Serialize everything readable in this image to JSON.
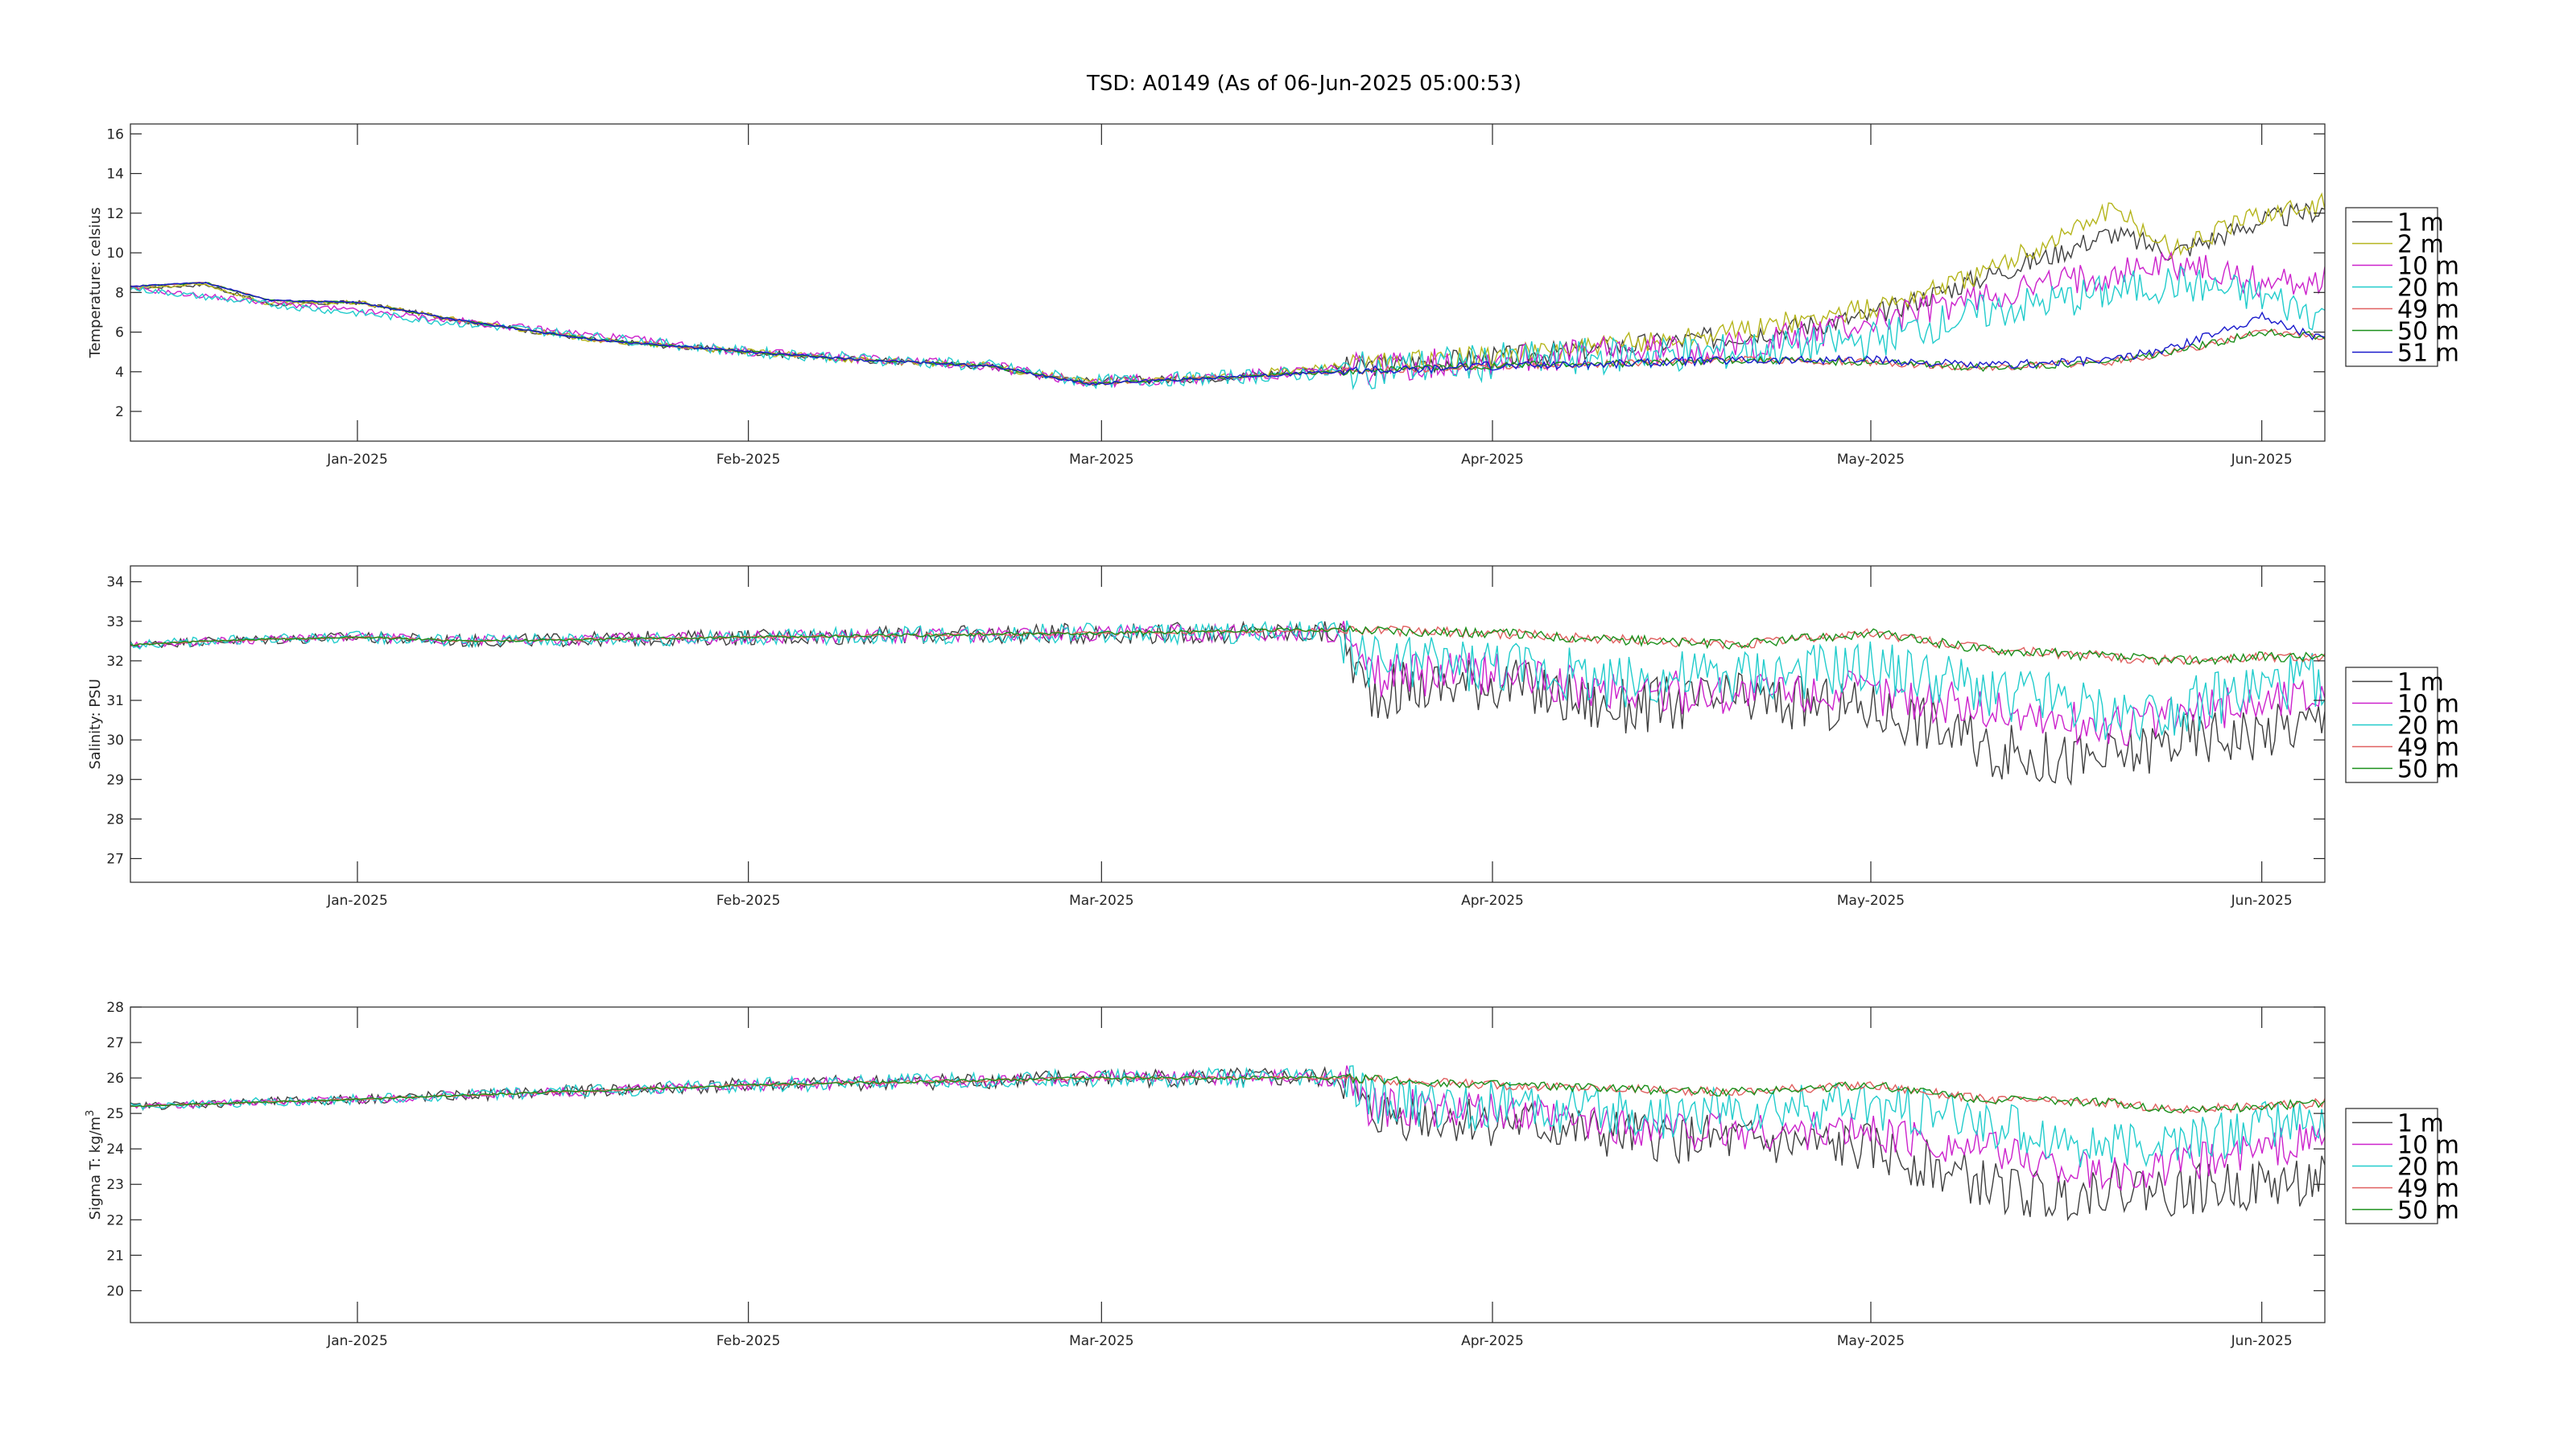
{
  "figure": {
    "title": "TSD: A0149 (As of 06-Jun-2025 05:00:53)",
    "background": "#ffffff"
  },
  "chart_data": [
    {
      "type": "line",
      "ylabel": "Temperature:  celsius",
      "xlabel": "",
      "x_range": [
        "2024-12-14",
        "2025-06-06"
      ],
      "ylim": [
        0.5,
        16.5
      ],
      "y_ticks": [
        2,
        4,
        6,
        8,
        10,
        12,
        14,
        16
      ],
      "x_ticks": [
        {
          "date": "2025-01-01",
          "label": "Jan-2025"
        },
        {
          "date": "2025-02-01",
          "label": "Feb-2025"
        },
        {
          "date": "2025-03-01",
          "label": "Mar-2025"
        },
        {
          "date": "2025-04-01",
          "label": "Apr-2025"
        },
        {
          "date": "2025-05-01",
          "label": "May-2025"
        },
        {
          "date": "2025-06-01",
          "label": "Jun-2025"
        }
      ],
      "grid": false,
      "legend_position": "outside-right",
      "series": [
        {
          "name": "1 m",
          "color": "#404040",
          "noise": 0.35,
          "dates": [
            "2024-12-14",
            "2024-12-20",
            "2024-12-25",
            "2025-01-01",
            "2025-01-10",
            "2025-01-20",
            "2025-02-01",
            "2025-02-10",
            "2025-02-20",
            "2025-02-28",
            "2025-03-10",
            "2025-03-20",
            "2025-04-01",
            "2025-04-10",
            "2025-04-20",
            "2025-05-01",
            "2025-05-10",
            "2025-05-15",
            "2025-05-20",
            "2025-05-25",
            "2025-06-01",
            "2025-06-06"
          ],
          "values": [
            8.2,
            8.4,
            7.4,
            7.5,
            6.5,
            5.6,
            5.0,
            4.6,
            4.3,
            3.5,
            3.7,
            4.2,
            4.7,
            5.2,
            5.8,
            6.8,
            8.8,
            9.8,
            11.0,
            10.0,
            11.6,
            12.2
          ]
        },
        {
          "name": "2 m",
          "color": "#b5b51c",
          "noise": 0.35,
          "dates": [
            "2024-12-14",
            "2024-12-20",
            "2024-12-25",
            "2025-01-01",
            "2025-01-10",
            "2025-01-20",
            "2025-02-01",
            "2025-02-10",
            "2025-02-20",
            "2025-02-28",
            "2025-03-10",
            "2025-03-20",
            "2025-04-01",
            "2025-04-10",
            "2025-04-20",
            "2025-05-01",
            "2025-05-10",
            "2025-05-15",
            "2025-05-20",
            "2025-05-25",
            "2025-06-01",
            "2025-06-06"
          ],
          "values": [
            8.2,
            8.4,
            7.4,
            7.5,
            6.5,
            5.6,
            5.0,
            4.6,
            4.3,
            3.5,
            3.7,
            4.3,
            4.8,
            5.3,
            6.0,
            7.2,
            9.0,
            10.5,
            12.2,
            10.2,
            12.0,
            12.5
          ]
        },
        {
          "name": "10 m",
          "color": "#cc22cc",
          "noise": 0.5,
          "dates": [
            "2024-12-14",
            "2024-12-25",
            "2025-01-10",
            "2025-02-01",
            "2025-02-20",
            "2025-02-28",
            "2025-03-10",
            "2025-03-20",
            "2025-04-01",
            "2025-04-10",
            "2025-04-20",
            "2025-05-01",
            "2025-05-10",
            "2025-05-20",
            "2025-05-25",
            "2025-06-01",
            "2025-06-06"
          ],
          "values": [
            8.2,
            7.5,
            6.5,
            5.0,
            4.3,
            3.5,
            3.7,
            4.1,
            4.6,
            5.0,
            5.2,
            6.5,
            7.8,
            9.0,
            9.5,
            8.5,
            8.6
          ]
        },
        {
          "name": "20 m",
          "color": "#22cccc",
          "noise": 0.6,
          "dates": [
            "2024-12-14",
            "2024-12-25",
            "2025-01-10",
            "2025-02-01",
            "2025-02-20",
            "2025-02-28",
            "2025-03-10",
            "2025-03-20",
            "2025-04-01",
            "2025-04-10",
            "2025-04-20",
            "2025-05-01",
            "2025-05-10",
            "2025-05-20",
            "2025-05-25",
            "2025-06-01",
            "2025-06-06"
          ],
          "values": [
            8.2,
            7.4,
            6.4,
            5.0,
            4.3,
            3.5,
            3.7,
            4.0,
            4.5,
            4.8,
            5.0,
            5.6,
            7.0,
            8.0,
            8.5,
            7.8,
            6.8
          ]
        },
        {
          "name": "49 m",
          "color": "#e06060",
          "noise": 0.12,
          "dates": [
            "2024-12-14",
            "2024-12-20",
            "2024-12-25",
            "2025-01-01",
            "2025-01-10",
            "2025-01-20",
            "2025-02-01",
            "2025-02-10",
            "2025-02-20",
            "2025-02-28",
            "2025-03-10",
            "2025-03-20",
            "2025-04-01",
            "2025-04-10",
            "2025-04-20",
            "2025-05-01",
            "2025-05-10",
            "2025-05-20",
            "2025-05-25",
            "2025-06-01",
            "2025-06-06"
          ],
          "values": [
            8.3,
            8.5,
            7.6,
            7.5,
            6.5,
            5.6,
            5.0,
            4.6,
            4.3,
            3.4,
            3.7,
            4.0,
            4.3,
            4.4,
            4.6,
            4.5,
            4.2,
            4.5,
            5.0,
            6.0,
            5.8
          ]
        },
        {
          "name": "50 m",
          "color": "#1a8f1a",
          "noise": 0.12,
          "dates": [
            "2024-12-14",
            "2024-12-20",
            "2024-12-25",
            "2025-01-01",
            "2025-01-10",
            "2025-01-20",
            "2025-02-01",
            "2025-02-10",
            "2025-02-20",
            "2025-02-28",
            "2025-03-10",
            "2025-03-20",
            "2025-04-01",
            "2025-04-10",
            "2025-04-20",
            "2025-05-01",
            "2025-05-10",
            "2025-05-20",
            "2025-05-25",
            "2025-06-01",
            "2025-06-06"
          ],
          "values": [
            8.3,
            8.5,
            7.6,
            7.5,
            6.5,
            5.6,
            5.0,
            4.6,
            4.3,
            3.4,
            3.7,
            4.0,
            4.3,
            4.4,
            4.6,
            4.5,
            4.2,
            4.5,
            5.0,
            6.0,
            5.8
          ]
        },
        {
          "name": "51 m",
          "color": "#1a1acc",
          "noise": 0.14,
          "dates": [
            "2024-12-14",
            "2024-12-20",
            "2024-12-25",
            "2025-01-01",
            "2025-01-10",
            "2025-01-20",
            "2025-02-01",
            "2025-02-10",
            "2025-02-20",
            "2025-02-28",
            "2025-03-10",
            "2025-03-20",
            "2025-04-01",
            "2025-04-10",
            "2025-04-20",
            "2025-05-01",
            "2025-05-10",
            "2025-05-20",
            "2025-05-25",
            "2025-06-01",
            "2025-06-06"
          ],
          "values": [
            8.3,
            8.5,
            7.6,
            7.5,
            6.5,
            5.6,
            5.0,
            4.6,
            4.3,
            3.4,
            3.7,
            4.0,
            4.3,
            4.4,
            4.6,
            4.6,
            4.3,
            4.6,
            5.2,
            6.8,
            5.6
          ]
        }
      ]
    },
    {
      "type": "line",
      "ylabel": "Salinity:  PSU",
      "xlabel": "",
      "x_range": [
        "2024-12-14",
        "2025-06-06"
      ],
      "ylim": [
        26.4,
        34.4
      ],
      "y_ticks": [
        27,
        28,
        29,
        30,
        31,
        32,
        33,
        34
      ],
      "x_ticks": [
        {
          "date": "2025-01-01",
          "label": "Jan-2025"
        },
        {
          "date": "2025-02-01",
          "label": "Feb-2025"
        },
        {
          "date": "2025-03-01",
          "label": "Mar-2025"
        },
        {
          "date": "2025-04-01",
          "label": "Apr-2025"
        },
        {
          "date": "2025-05-01",
          "label": "May-2025"
        },
        {
          "date": "2025-06-01",
          "label": "Jun-2025"
        }
      ],
      "grid": false,
      "legend_position": "outside-right",
      "series": [
        {
          "name": "1 m",
          "color": "#404040",
          "noise": 0.45,
          "dates": [
            "2024-12-14",
            "2024-12-20",
            "2025-01-01",
            "2025-01-10",
            "2025-02-01",
            "2025-03-01",
            "2025-03-20",
            "2025-03-22",
            "2025-04-01",
            "2025-04-10",
            "2025-04-20",
            "2025-05-01",
            "2025-05-05",
            "2025-05-10",
            "2025-05-15",
            "2025-05-20",
            "2025-05-25",
            "2025-06-01",
            "2025-06-06"
          ],
          "values": [
            32.4,
            32.5,
            32.6,
            32.5,
            32.6,
            32.7,
            32.7,
            31.2,
            31.5,
            30.8,
            31.0,
            30.8,
            30.5,
            29.8,
            29.5,
            29.5,
            30.0,
            30.2,
            30.5
          ]
        },
        {
          "name": "10 m",
          "color": "#cc22cc",
          "noise": 0.35,
          "dates": [
            "2024-12-14",
            "2024-12-20",
            "2025-01-01",
            "2025-01-10",
            "2025-02-01",
            "2025-03-01",
            "2025-03-20",
            "2025-03-22",
            "2025-04-01",
            "2025-04-10",
            "2025-04-20",
            "2025-05-01",
            "2025-05-10",
            "2025-05-15",
            "2025-05-20",
            "2025-05-25",
            "2025-06-01",
            "2025-06-06"
          ],
          "values": [
            32.4,
            32.5,
            32.6,
            32.5,
            32.6,
            32.7,
            32.7,
            31.6,
            31.7,
            31.2,
            31.2,
            31.2,
            30.8,
            30.5,
            30.3,
            30.6,
            31.0,
            31.2
          ]
        },
        {
          "name": "20 m",
          "color": "#22cccc",
          "noise": 0.45,
          "dates": [
            "2024-12-14",
            "2024-12-20",
            "2025-01-01",
            "2025-01-10",
            "2025-02-01",
            "2025-03-01",
            "2025-03-20",
            "2025-03-22",
            "2025-04-01",
            "2025-04-10",
            "2025-04-20",
            "2025-05-01",
            "2025-05-10",
            "2025-05-15",
            "2025-05-20",
            "2025-05-25",
            "2025-06-01",
            "2025-06-06"
          ],
          "values": [
            32.4,
            32.5,
            32.6,
            32.5,
            32.6,
            32.7,
            32.7,
            31.9,
            31.9,
            31.5,
            31.6,
            31.8,
            31.3,
            31.0,
            30.6,
            30.8,
            31.3,
            31.6
          ]
        },
        {
          "name": "49 m",
          "color": "#e06060",
          "noise": 0.08,
          "dates": [
            "2024-12-14",
            "2024-12-20",
            "2025-01-01",
            "2025-01-10",
            "2025-02-01",
            "2025-03-01",
            "2025-03-20",
            "2025-04-01",
            "2025-04-20",
            "2025-05-01",
            "2025-05-10",
            "2025-05-20",
            "2025-05-25",
            "2025-06-01",
            "2025-06-06"
          ],
          "values": [
            32.4,
            32.5,
            32.6,
            32.5,
            32.6,
            32.7,
            32.8,
            32.7,
            32.4,
            32.7,
            32.3,
            32.1,
            32.0,
            32.1,
            32.1
          ]
        },
        {
          "name": "50 m",
          "color": "#1a8f1a",
          "noise": 0.08,
          "dates": [
            "2024-12-14",
            "2024-12-20",
            "2025-01-01",
            "2025-01-10",
            "2025-02-01",
            "2025-03-01",
            "2025-03-20",
            "2025-04-01",
            "2025-04-20",
            "2025-05-01",
            "2025-05-10",
            "2025-05-20",
            "2025-05-25",
            "2025-06-01",
            "2025-06-06"
          ],
          "values": [
            32.4,
            32.5,
            32.6,
            32.5,
            32.6,
            32.7,
            32.8,
            32.7,
            32.4,
            32.7,
            32.3,
            32.1,
            32.0,
            32.1,
            32.1
          ]
        }
      ]
    },
    {
      "type": "line",
      "ylabel": "Sigma T:  kg/m",
      "ylabel_superscript": "3",
      "xlabel": "",
      "x_range": [
        "2024-12-14",
        "2025-06-06"
      ],
      "ylim": [
        19.1,
        28.0
      ],
      "y_ticks": [
        20,
        21,
        22,
        23,
        24,
        25,
        26,
        27,
        28
      ],
      "x_ticks": [
        {
          "date": "2025-01-01",
          "label": "Jan-2025"
        },
        {
          "date": "2025-02-01",
          "label": "Feb-2025"
        },
        {
          "date": "2025-03-01",
          "label": "Mar-2025"
        },
        {
          "date": "2025-04-01",
          "label": "Apr-2025"
        },
        {
          "date": "2025-05-01",
          "label": "May-2025"
        },
        {
          "date": "2025-06-01",
          "label": "Jun-2025"
        }
      ],
      "grid": false,
      "legend_position": "outside-right",
      "series": [
        {
          "name": "1 m",
          "color": "#404040",
          "noise": 0.45,
          "dates": [
            "2024-12-14",
            "2025-01-01",
            "2025-02-01",
            "2025-03-01",
            "2025-03-20",
            "2025-03-22",
            "2025-04-01",
            "2025-04-10",
            "2025-04-20",
            "2025-05-01",
            "2025-05-05",
            "2025-05-10",
            "2025-05-15",
            "2025-05-20",
            "2025-05-25",
            "2025-06-01",
            "2025-06-06"
          ],
          "values": [
            25.2,
            25.4,
            25.8,
            26.0,
            26.0,
            25.0,
            24.8,
            24.4,
            24.2,
            24.0,
            23.6,
            23.0,
            22.6,
            23.0,
            22.8,
            23.0,
            23.1
          ]
        },
        {
          "name": "10 m",
          "color": "#cc22cc",
          "noise": 0.35,
          "dates": [
            "2024-12-14",
            "2025-01-01",
            "2025-02-01",
            "2025-03-01",
            "2025-03-20",
            "2025-03-22",
            "2025-04-01",
            "2025-04-10",
            "2025-04-20",
            "2025-05-01",
            "2025-05-10",
            "2025-05-15",
            "2025-05-20",
            "2025-05-25",
            "2025-06-01",
            "2025-06-06"
          ],
          "values": [
            25.2,
            25.4,
            25.8,
            26.0,
            26.0,
            25.2,
            25.0,
            24.7,
            24.5,
            24.5,
            24.0,
            23.6,
            23.2,
            23.5,
            24.0,
            24.3
          ]
        },
        {
          "name": "20 m",
          "color": "#22cccc",
          "noise": 0.45,
          "dates": [
            "2024-12-14",
            "2025-01-01",
            "2025-02-01",
            "2025-03-01",
            "2025-03-20",
            "2025-03-22",
            "2025-04-01",
            "2025-04-10",
            "2025-04-20",
            "2025-05-01",
            "2025-05-10",
            "2025-05-15",
            "2025-05-20",
            "2025-05-25",
            "2025-06-01",
            "2025-06-06"
          ],
          "values": [
            25.2,
            25.4,
            25.8,
            26.0,
            26.0,
            25.4,
            25.2,
            25.0,
            25.0,
            25.2,
            24.8,
            24.4,
            24.0,
            24.2,
            24.6,
            24.8
          ]
        },
        {
          "name": "49 m",
          "color": "#e06060",
          "noise": 0.08,
          "dates": [
            "2024-12-14",
            "2025-01-01",
            "2025-02-01",
            "2025-03-01",
            "2025-03-20",
            "2025-04-01",
            "2025-04-20",
            "2025-05-01",
            "2025-05-10",
            "2025-05-20",
            "2025-05-25",
            "2025-06-01",
            "2025-06-06"
          ],
          "values": [
            25.2,
            25.4,
            25.8,
            26.0,
            26.0,
            25.8,
            25.6,
            25.8,
            25.4,
            25.3,
            25.1,
            25.2,
            25.3
          ]
        },
        {
          "name": "50 m",
          "color": "#1a8f1a",
          "noise": 0.08,
          "dates": [
            "2024-12-14",
            "2025-01-01",
            "2025-02-01",
            "2025-03-01",
            "2025-03-20",
            "2025-04-01",
            "2025-04-20",
            "2025-05-01",
            "2025-05-10",
            "2025-05-20",
            "2025-05-25",
            "2025-06-01",
            "2025-06-06"
          ],
          "values": [
            25.2,
            25.4,
            25.8,
            26.0,
            26.0,
            25.8,
            25.6,
            25.8,
            25.4,
            25.3,
            25.1,
            25.2,
            25.3
          ]
        }
      ]
    }
  ]
}
